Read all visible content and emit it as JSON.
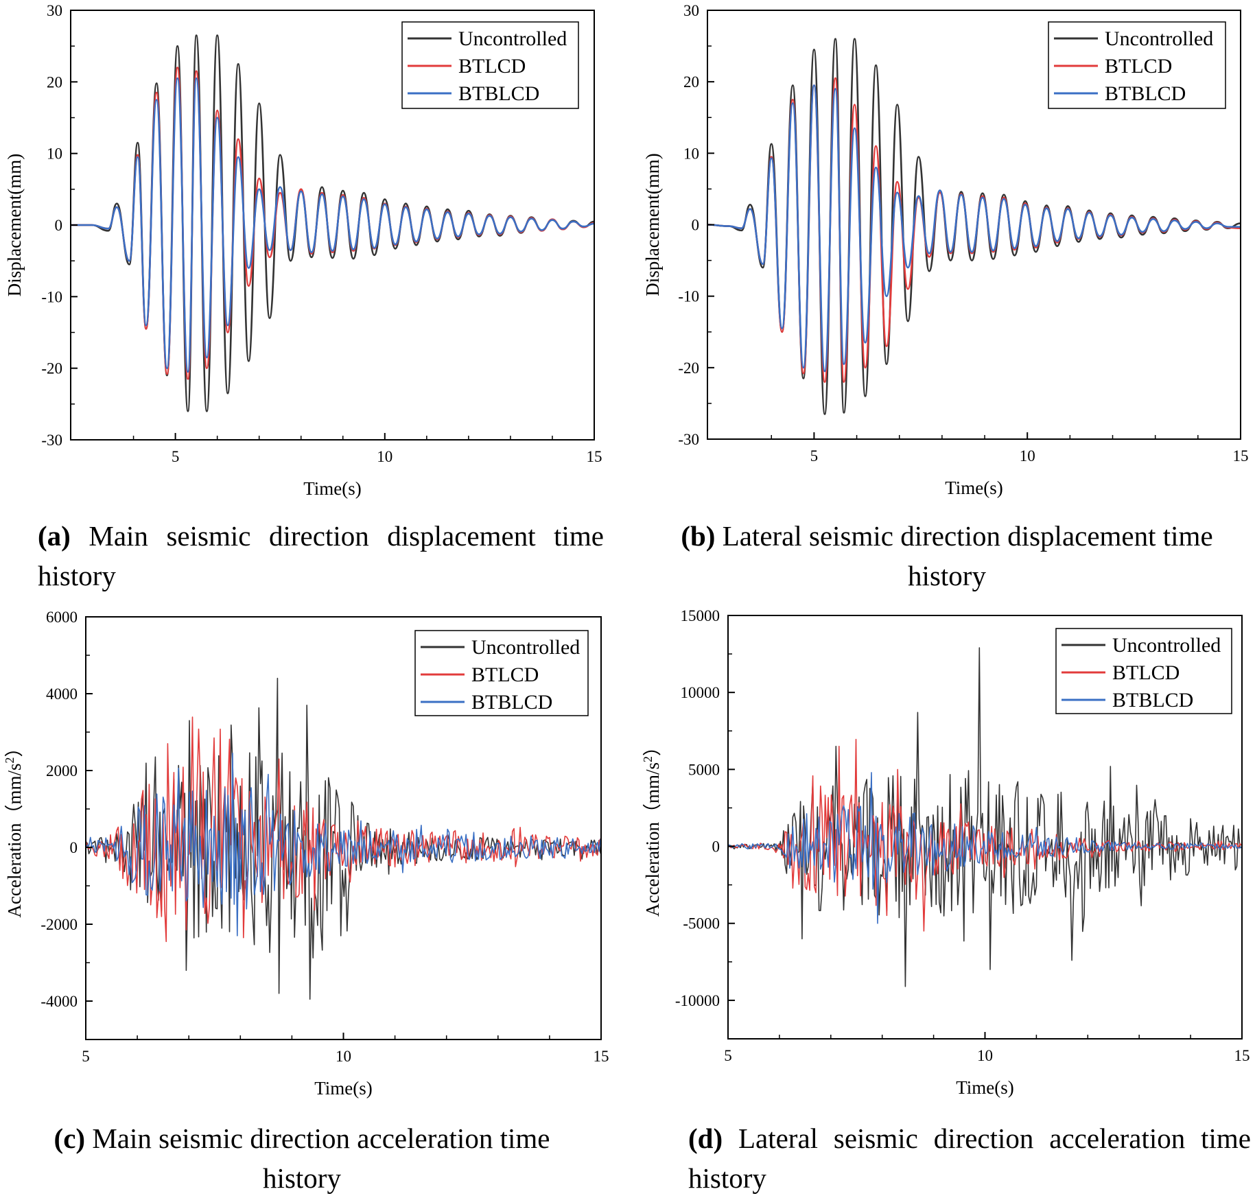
{
  "colors": {
    "uncontrolled": "#333333",
    "btlcd": "#e23b3b",
    "btblcd": "#3a6fc4",
    "axis": "#000000"
  },
  "chart_data": [
    {
      "id": "a",
      "type": "line",
      "ylabel": "Displacement(mm)",
      "ylabel_sup": "",
      "xlabel": "Time(s)",
      "xlim": [
        2.5,
        15
      ],
      "ylim": [
        -30,
        30
      ],
      "xticks": [
        5,
        10,
        15
      ],
      "yticks": [
        -30,
        -20,
        -10,
        0,
        10,
        20,
        30
      ],
      "legend": [
        "Uncontrolled",
        "BTLCD",
        "BTBLCD"
      ],
      "caption_letter": "(a)",
      "caption_text": "Main seismic direction displacement time history",
      "series": [
        {
          "name": "Uncontrolled",
          "x": [
            2.5,
            3.0,
            3.4,
            3.6,
            3.9,
            4.1,
            4.3,
            4.55,
            4.8,
            5.05,
            5.3,
            5.5,
            5.75,
            6.0,
            6.25,
            6.5,
            6.75,
            7.0,
            7.25,
            7.5,
            7.75,
            8.0,
            8.25,
            8.5,
            8.75,
            9.0,
            9.25,
            9.5,
            9.75,
            10.0,
            10.25,
            10.5,
            10.75,
            11.0,
            11.25,
            11.5,
            11.75,
            12.0,
            12.25,
            12.5,
            12.75,
            13.0,
            13.25,
            13.5,
            13.75,
            14.0,
            14.25,
            14.5,
            14.75,
            15.0
          ],
          "y": [
            0,
            0,
            -0.8,
            3,
            -5.5,
            11.5,
            -14.5,
            19.8,
            -21,
            25,
            -26,
            26.5,
            -26,
            26.5,
            -23.5,
            22.5,
            -19,
            17,
            -13,
            9.8,
            -5,
            5,
            -4.5,
            5.3,
            -4.6,
            4.8,
            -4.7,
            4.5,
            -4.2,
            3.6,
            -3.3,
            3,
            -2.8,
            2.6,
            -2.3,
            2.2,
            -2,
            2.0,
            -1.6,
            1.5,
            -1.5,
            1.3,
            -1.1,
            1.1,
            -0.8,
            0.8,
            -0.6,
            0.6,
            -0.3,
            0.5
          ]
        },
        {
          "name": "BTLCD",
          "x": [
            2.5,
            3.0,
            3.4,
            3.6,
            3.9,
            4.1,
            4.3,
            4.55,
            4.8,
            5.05,
            5.3,
            5.5,
            5.75,
            6.0,
            6.25,
            6.5,
            6.75,
            7.0,
            7.25,
            7.5,
            7.75,
            8.0,
            8.25,
            8.5,
            8.75,
            9.0,
            9.25,
            9.5,
            9.75,
            10.0,
            10.25,
            10.5,
            10.75,
            11.0,
            11.25,
            11.5,
            11.75,
            12.0,
            12.25,
            12.5,
            12.75,
            13.0,
            13.25,
            13.5,
            13.75,
            14.0,
            14.25,
            14.5,
            14.75,
            15.0
          ],
          "y": [
            0,
            0,
            -0.5,
            2.5,
            -5,
            9.8,
            -14.5,
            18.5,
            -20.8,
            22,
            -21.5,
            21.5,
            -20,
            16,
            -15,
            12,
            -8.5,
            6.5,
            -4.5,
            4.5,
            -3.5,
            5,
            -4,
            4.5,
            -3.8,
            4.2,
            -3.6,
            3.8,
            -3.3,
            3,
            -2.8,
            2.6,
            -2.4,
            2.3,
            -2,
            1.9,
            -1.7,
            1.7,
            -1.4,
            1.4,
            -1.3,
            1.2,
            -1,
            1,
            -0.8,
            0.8,
            -0.6,
            0.5,
            -0.3,
            0.3
          ]
        },
        {
          "name": "BTBLCD",
          "x": [
            2.5,
            3.0,
            3.4,
            3.6,
            3.9,
            4.1,
            4.3,
            4.55,
            4.8,
            5.05,
            5.3,
            5.5,
            5.75,
            6.0,
            6.25,
            6.5,
            6.75,
            7.0,
            7.25,
            7.5,
            7.75,
            8.0,
            8.25,
            8.5,
            8.75,
            9.0,
            9.25,
            9.5,
            9.75,
            10.0,
            10.25,
            10.5,
            10.75,
            11.0,
            11.25,
            11.5,
            11.75,
            12.0,
            12.25,
            12.5,
            12.75,
            13.0,
            13.25,
            13.5,
            13.75,
            14.0,
            14.25,
            14.5,
            14.75,
            15.0
          ],
          "y": [
            0,
            0,
            -0.5,
            2.5,
            -5,
            9.5,
            -14,
            17.5,
            -20,
            20.5,
            -20.5,
            20.5,
            -18.5,
            15,
            -14,
            9.5,
            -6,
            5,
            -3.5,
            5.3,
            -3.5,
            4.7,
            -3.8,
            4.3,
            -3.6,
            4,
            -3.4,
            3.6,
            -3.2,
            2.9,
            -2.7,
            2.5,
            -2.3,
            2.2,
            -1.9,
            1.8,
            -1.6,
            1.6,
            -1.3,
            1.3,
            -1.2,
            1.1,
            -0.9,
            0.9,
            -0.7,
            0.7,
            -0.5,
            0.5,
            -0.2,
            0.2
          ]
        }
      ]
    },
    {
      "id": "b",
      "type": "line",
      "ylabel": "Displacement(mm)",
      "ylabel_sup": "",
      "xlabel": "Time(s)",
      "xlim": [
        2.5,
        15
      ],
      "ylim": [
        -30,
        30
      ],
      "xticks": [
        5,
        10,
        15
      ],
      "yticks": [
        -30,
        -20,
        -10,
        0,
        10,
        20,
        30
      ],
      "legend": [
        "Uncontrolled",
        "BTLCD",
        "BTBLCD"
      ],
      "caption_letter": "(b)",
      "caption_text": "Lateral seismic direction displacement time history",
      "series": [
        {
          "name": "Uncontrolled",
          "x": [
            2.5,
            3.0,
            3.3,
            3.5,
            3.8,
            4.0,
            4.25,
            4.5,
            4.75,
            5.0,
            5.25,
            5.5,
            5.7,
            5.95,
            6.2,
            6.45,
            6.7,
            6.95,
            7.2,
            7.45,
            7.7,
            7.95,
            8.2,
            8.45,
            8.7,
            8.95,
            9.2,
            9.45,
            9.7,
            9.95,
            10.2,
            10.45,
            10.7,
            10.95,
            11.2,
            11.45,
            11.7,
            11.95,
            12.2,
            12.45,
            12.7,
            12.95,
            13.2,
            13.45,
            13.7,
            13.95,
            14.2,
            14.45,
            14.7,
            15.0
          ],
          "y": [
            0,
            -0.2,
            -0.8,
            2.8,
            -6,
            11.3,
            -15,
            19.5,
            -21.5,
            24.5,
            -26.5,
            26,
            -26.3,
            26,
            -24,
            22.3,
            -19.5,
            16.8,
            -13.5,
            9.5,
            -6.5,
            4.8,
            -5,
            4.6,
            -5,
            4.4,
            -4.8,
            4.2,
            -4.3,
            3.3,
            -3.8,
            2.7,
            -3,
            2.6,
            -2.4,
            2,
            -2,
            1.6,
            -1.8,
            1.3,
            -1.4,
            1.1,
            -1.2,
            0.9,
            -0.9,
            0.6,
            -0.7,
            0.4,
            -0.5,
            0.2
          ]
        },
        {
          "name": "BTLCD",
          "x": [
            2.5,
            3.0,
            3.3,
            3.5,
            3.8,
            4.0,
            4.25,
            4.5,
            4.75,
            5.0,
            5.25,
            5.5,
            5.7,
            5.95,
            6.2,
            6.45,
            6.7,
            6.95,
            7.2,
            7.45,
            7.7,
            7.95,
            8.2,
            8.45,
            8.7,
            8.95,
            9.2,
            9.45,
            9.7,
            9.95,
            10.2,
            10.45,
            10.7,
            10.95,
            11.2,
            11.45,
            11.7,
            11.95,
            12.2,
            12.45,
            12.7,
            12.95,
            13.2,
            13.45,
            13.7,
            13.95,
            14.2,
            14.45,
            14.7,
            15.0
          ],
          "y": [
            0,
            -0.2,
            -0.5,
            2.2,
            -5.5,
            9.5,
            -15,
            17.5,
            -20.8,
            19.5,
            -22,
            20.5,
            -22,
            16.8,
            -20,
            11,
            -17,
            6,
            -9,
            3.8,
            -4.5,
            4.5,
            -4,
            4.3,
            -4,
            4,
            -3.8,
            3.8,
            -3.5,
            3,
            -3.2,
            2.4,
            -2.5,
            2.3,
            -2,
            1.8,
            -1.7,
            1.4,
            -1.5,
            1.1,
            -1.1,
            0.9,
            -1,
            0.7,
            -0.7,
            0.5,
            -0.6,
            0.3,
            -0.4,
            -0.5
          ]
        },
        {
          "name": "BTBLCD",
          "x": [
            2.5,
            3.0,
            3.3,
            3.5,
            3.8,
            4.0,
            4.25,
            4.5,
            4.75,
            5.0,
            5.25,
            5.5,
            5.7,
            5.95,
            6.2,
            6.45,
            6.7,
            6.95,
            7.2,
            7.45,
            7.7,
            7.95,
            8.2,
            8.45,
            8.7,
            8.95,
            9.2,
            9.45,
            9.7,
            9.95,
            10.2,
            10.45,
            10.7,
            10.95,
            11.2,
            11.45,
            11.7,
            11.95,
            12.2,
            12.45,
            12.7,
            12.95,
            13.2,
            13.45,
            13.7,
            13.95,
            14.2,
            14.45,
            14.7,
            15.0
          ],
          "y": [
            0,
            -0.2,
            -0.5,
            2.2,
            -5.5,
            9.3,
            -14.5,
            17,
            -20,
            19.5,
            -20.5,
            19,
            -19.5,
            13.5,
            -16.5,
            8,
            -10,
            4.5,
            -6,
            4,
            -4,
            4.8,
            -3.8,
            4.2,
            -3.8,
            3.8,
            -3.6,
            3.6,
            -3.3,
            2.8,
            -3,
            2.3,
            -2.3,
            2.2,
            -1.9,
            1.7,
            -1.6,
            1.3,
            -1.4,
            1,
            -1,
            0.8,
            -0.9,
            0.6,
            -0.6,
            0.4,
            -0.5,
            0.2,
            -0.3,
            -0.3
          ]
        }
      ]
    },
    {
      "id": "c",
      "type": "line",
      "ylabel": "Acceleration（mm/s",
      "ylabel_sup": "2",
      "ylabel_close": "）",
      "xlabel": "Time(s)",
      "xlim": [
        5,
        15
      ],
      "ylim": [
        -5000,
        6000
      ],
      "xticks": [
        5,
        10,
        15
      ],
      "yticks": [
        -4000,
        -2000,
        0,
        2000,
        4000,
        6000
      ],
      "legend": [
        "Uncontrolled",
        "BTLCD",
        "BTBLCD"
      ],
      "caption_letter": "(c)",
      "caption_text": "Main seismic direction acceleration time history",
      "noise": {
        "seed": 11,
        "start": 5.0,
        "end": 15.0,
        "dt": 0.03,
        "series": [
          {
            "name": "Uncontrolled",
            "env_t": [
              5,
              5.5,
              6,
              7,
              8,
              8.6,
              9.3,
              10,
              10.5,
              12,
              15
            ],
            "env_a": [
              200,
              400,
              1500,
              2500,
              2200,
              3500,
              3500,
              1800,
              600,
              350,
              200
            ],
            "peaks": [
              [
                8.72,
                4400
              ],
              [
                8.75,
                -3800
              ],
              [
                9.3,
                3700
              ],
              [
                9.35,
                -3950
              ],
              [
                7.0,
                3300
              ],
              [
                6.95,
                -3200
              ],
              [
                9.95,
                2500
              ],
              [
                9.95,
                -2300
              ]
            ]
          },
          {
            "name": "BTLCD",
            "env_t": [
              5,
              5.5,
              6,
              7,
              8,
              8.6,
              9.3,
              10,
              10.5,
              12,
              15
            ],
            "env_a": [
              200,
              350,
              1600,
              2200,
              1800,
              1600,
              1200,
              600,
              500,
              450,
              250
            ],
            "peaks": [
              [
                6.6,
                2700
              ],
              [
                6.55,
                -2450
              ],
              [
                7.5,
                2850
              ],
              [
                8.05,
                -2350
              ],
              [
                8.75,
                2300
              ]
            ]
          },
          {
            "name": "BTBLCD",
            "env_t": [
              5,
              5.5,
              6,
              7,
              8,
              8.6,
              9.3,
              10,
              10.5,
              12,
              15
            ],
            "env_a": [
              150,
              300,
              1200,
              1700,
              1500,
              1200,
              900,
              500,
              450,
              400,
              250
            ],
            "peaks": [
              [
                7.85,
                2450
              ],
              [
                7.95,
                -2300
              ],
              [
                8.55,
                1900
              ]
            ]
          }
        ]
      }
    },
    {
      "id": "d",
      "type": "line",
      "ylabel": "Acceleration（mm/s",
      "ylabel_sup": "2",
      "ylabel_close": "）",
      "xlabel": "Time(s)",
      "xlim": [
        5,
        15
      ],
      "ylim": [
        -12500,
        15000
      ],
      "xticks": [
        5,
        10,
        15
      ],
      "yticks": [
        -10000,
        -5000,
        0,
        5000,
        10000,
        15000
      ],
      "legend": [
        "Uncontrolled",
        "BTLCD",
        "BTBLCD"
      ],
      "caption_letter": "(d)",
      "caption_text": "Lateral seismic direction acceleration time history",
      "noise": {
        "seed": 23,
        "start": 5.0,
        "end": 15.0,
        "dt": 0.03,
        "series": [
          {
            "name": "Uncontrolled",
            "env_t": [
              5,
              6,
              6.3,
              7,
              8,
              9,
              10,
              11,
              12,
              13,
              15
            ],
            "env_a": [
              100,
              300,
              3500,
              4500,
              4500,
              5000,
              5000,
              4000,
              3500,
              2500,
              1500
            ],
            "peaks": [
              [
                9.9,
                12900
              ],
              [
                8.7,
                8700
              ],
              [
                8.45,
                -9100
              ],
              [
                10.1,
                -8000
              ],
              [
                12.45,
                5200
              ],
              [
                11.7,
                -7400
              ],
              [
                7.1,
                6500
              ],
              [
                6.45,
                -6000
              ]
            ]
          },
          {
            "name": "BTLCD",
            "env_t": [
              5,
              6,
              6.3,
              7,
              8,
              9,
              10,
              11,
              12,
              13,
              15
            ],
            "env_a": [
              100,
              300,
              2500,
              3500,
              3000,
              2000,
              1500,
              1200,
              500,
              300,
              200
            ],
            "peaks": [
              [
                7.15,
                6500
              ],
              [
                7.5,
                6950
              ],
              [
                8.3,
                5000
              ],
              [
                8.8,
                -5500
              ]
            ]
          },
          {
            "name": "BTBLCD",
            "env_t": [
              5,
              6,
              6.3,
              7,
              8,
              9,
              10,
              11,
              12,
              13,
              15
            ],
            "env_a": [
              100,
              300,
              2000,
              2800,
              2800,
              2000,
              1200,
              800,
              400,
              200,
              150
            ],
            "peaks": [
              [
                7.8,
                4800
              ],
              [
                7.9,
                -5000
              ]
            ]
          }
        ]
      }
    }
  ]
}
